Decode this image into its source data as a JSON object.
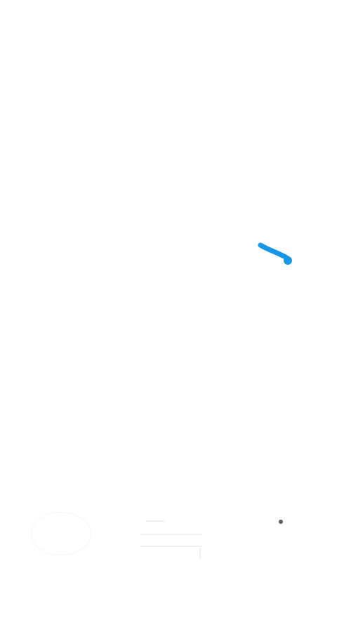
{
  "canvas": {
    "background": "#ffffff",
    "stroke_color": "#1596e8"
  },
  "controls": {
    "left_icon": "circle-outline-icon",
    "center_icon": "menu-lines-icon",
    "dot_icon": "dot-icon"
  }
}
